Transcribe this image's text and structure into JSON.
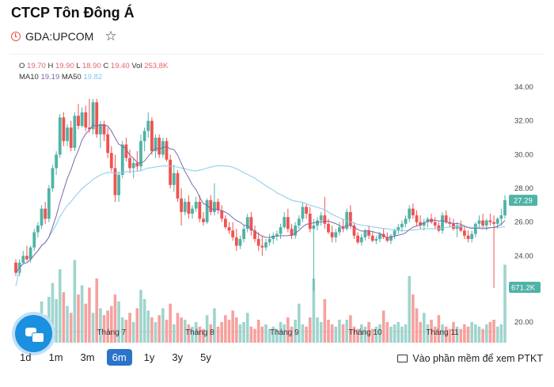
{
  "company_name": "CTCP Tôn Đông Á",
  "ticker": "GDA:UPCOM",
  "icons": {
    "clock": "clock-icon",
    "star": "star-icon",
    "chat": "chat-icon",
    "screen": "monitor-icon"
  },
  "legend": {
    "o_label": "O",
    "o_value": "19.70",
    "h_label": "H",
    "h_value": "19.90",
    "l_label": "L",
    "l_value": "18.90",
    "c_label": "C",
    "c_value": "19.40",
    "vol_label": "Vol",
    "vol_value": "253,8K",
    "ma10_label": "MA10",
    "ma10_value": "19.19",
    "ma50_label": "MA50",
    "ma50_value": "19.82"
  },
  "ranges": [
    {
      "label": "1d",
      "active": false
    },
    {
      "label": "1m",
      "active": false
    },
    {
      "label": "3m",
      "active": false
    },
    {
      "label": "6m",
      "active": true
    },
    {
      "label": "1y",
      "active": false
    },
    {
      "label": "3y",
      "active": false
    },
    {
      "label": "5y",
      "active": false
    }
  ],
  "ptkt_label": "Vào phần mềm để xem PTKT",
  "colors": {
    "up": "#4fb3a6",
    "down": "#ef5350",
    "ma10": "#7b68a8",
    "ma50": "#8fd0ee",
    "active": "#2a74c9"
  },
  "chart_data": {
    "type": "candlestick",
    "price_axis": [
      34.0,
      32.0,
      30.0,
      28.0,
      26.0,
      24.0
    ],
    "volume_axis": [
      20.0
    ],
    "ylim": [
      18.9,
      34.6
    ],
    "months": [
      "Tháng 6",
      "Tháng 7",
      "Tháng 8",
      "Tháng 9",
      "Tháng 10",
      "Tháng 11"
    ],
    "month_index": [
      3,
      26,
      50,
      73,
      95,
      116
    ],
    "last_price_label": "27.29",
    "last_price": 27.29,
    "last_volume_label": "671.2K",
    "ohlc": [
      [
        23.6,
        23.8,
        22.8,
        23.0
      ],
      [
        23.0,
        23.8,
        22.8,
        23.6
      ],
      [
        23.6,
        24.3,
        23.5,
        24.0
      ],
      [
        24.0,
        24.6,
        23.7,
        23.8
      ],
      [
        23.8,
        24.6,
        23.6,
        24.5
      ],
      [
        24.5,
        25.6,
        24.3,
        25.4
      ],
      [
        25.4,
        26.0,
        25.1,
        25.8
      ],
      [
        25.8,
        27.0,
        25.6,
        26.8
      ],
      [
        26.8,
        27.2,
        25.9,
        26.2
      ],
      [
        26.2,
        28.2,
        26.0,
        28.0
      ],
      [
        28.0,
        29.4,
        27.8,
        29.2
      ],
      [
        29.2,
        30.2,
        28.8,
        30.0
      ],
      [
        30.0,
        32.4,
        29.8,
        32.2
      ],
      [
        32.2,
        32.5,
        30.5,
        30.8
      ],
      [
        30.8,
        31.8,
        30.5,
        31.6
      ],
      [
        31.6,
        32.0,
        30.2,
        30.4
      ],
      [
        30.4,
        32.5,
        30.2,
        32.3
      ],
      [
        32.3,
        33.0,
        31.5,
        31.7
      ],
      [
        31.7,
        32.8,
        31.6,
        32.5
      ],
      [
        32.5,
        32.9,
        31.4,
        31.6
      ],
      [
        31.6,
        33.3,
        31.3,
        31.5
      ],
      [
        31.5,
        33.3,
        31.2,
        33.1
      ],
      [
        33.1,
        33.3,
        31.0,
        31.2
      ],
      [
        31.2,
        32.0,
        30.4,
        31.8
      ],
      [
        31.8,
        32.0,
        30.8,
        31.2
      ],
      [
        31.2,
        31.6,
        29.8,
        30.1
      ],
      [
        30.1,
        30.5,
        29.0,
        29.2
      ],
      [
        29.2,
        30.0,
        27.2,
        27.6
      ],
      [
        27.6,
        29.0,
        27.2,
        28.8
      ],
      [
        28.8,
        30.8,
        28.6,
        30.6
      ],
      [
        30.6,
        31.0,
        29.6,
        29.8
      ],
      [
        29.8,
        30.3,
        28.9,
        29.2
      ],
      [
        29.2,
        29.8,
        28.6,
        29.5
      ],
      [
        29.5,
        30.2,
        29.0,
        29.3
      ],
      [
        29.3,
        31.2,
        29.0,
        30.8
      ],
      [
        30.8,
        31.6,
        30.2,
        31.4
      ],
      [
        31.4,
        32.5,
        31.0,
        32.0
      ],
      [
        32.0,
        32.2,
        30.0,
        30.2
      ],
      [
        30.2,
        31.2,
        29.8,
        31.0
      ],
      [
        31.0,
        31.2,
        29.8,
        30.0
      ],
      [
        30.0,
        31.0,
        29.8,
        30.8
      ],
      [
        30.8,
        31.0,
        29.6,
        29.7
      ],
      [
        29.7,
        30.0,
        28.0,
        28.2
      ],
      [
        28.2,
        29.4,
        27.8,
        28.9
      ],
      [
        28.9,
        29.1,
        27.2,
        27.4
      ],
      [
        27.4,
        28.0,
        25.8,
        26.6
      ],
      [
        26.6,
        27.4,
        26.4,
        27.2
      ],
      [
        27.2,
        27.6,
        26.2,
        26.5
      ],
      [
        26.5,
        27.0,
        26.2,
        26.8
      ],
      [
        26.8,
        27.5,
        26.6,
        27.2
      ],
      [
        27.2,
        27.6,
        26.0,
        26.2
      ],
      [
        26.2,
        26.6,
        25.8,
        26.0
      ],
      [
        26.0,
        27.4,
        25.9,
        27.3
      ],
      [
        27.3,
        27.6,
        26.4,
        26.6
      ],
      [
        26.6,
        28.3,
        26.4,
        27.2
      ],
      [
        27.2,
        27.4,
        26.5,
        26.7
      ],
      [
        26.7,
        27.0,
        26.0,
        26.2
      ],
      [
        26.2,
        26.4,
        25.6,
        25.7
      ],
      [
        25.7,
        26.0,
        25.3,
        25.5
      ],
      [
        25.5,
        26.0,
        24.9,
        25.1
      ],
      [
        25.1,
        25.6,
        24.3,
        24.6
      ],
      [
        24.6,
        25.2,
        24.4,
        25.0
      ],
      [
        25.0,
        25.8,
        24.8,
        25.6
      ],
      [
        25.6,
        26.5,
        25.4,
        26.3
      ],
      [
        26.3,
        26.6,
        25.2,
        25.5
      ],
      [
        25.5,
        25.8,
        24.8,
        25.0
      ],
      [
        25.0,
        25.4,
        24.3,
        24.6
      ],
      [
        24.6,
        25.2,
        24.0,
        24.5
      ],
      [
        24.5,
        25.0,
        24.3,
        24.8
      ],
      [
        24.8,
        25.3,
        24.6,
        25.0
      ],
      [
        25.0,
        25.4,
        24.7,
        25.2
      ],
      [
        25.2,
        25.5,
        24.9,
        25.3
      ],
      [
        25.3,
        25.9,
        25.0,
        25.7
      ],
      [
        25.7,
        26.6,
        25.6,
        26.3
      ],
      [
        26.3,
        26.8,
        25.4,
        25.6
      ],
      [
        25.6,
        25.9,
        25.0,
        25.2
      ],
      [
        25.2,
        26.0,
        25.0,
        25.8
      ],
      [
        25.8,
        26.4,
        25.6,
        26.2
      ],
      [
        26.2,
        27.2,
        26.0,
        26.9
      ],
      [
        26.9,
        27.1,
        26.2,
        26.5
      ],
      [
        26.5,
        26.9,
        25.4,
        25.6
      ],
      [
        25.6,
        26.2,
        21.9,
        25.8
      ],
      [
        25.8,
        26.3,
        25.5,
        26.1
      ],
      [
        26.1,
        26.6,
        25.8,
        26.4
      ],
      [
        26.4,
        27.5,
        25.6,
        25.9
      ],
      [
        25.9,
        26.2,
        25.3,
        25.4
      ],
      [
        25.4,
        25.8,
        24.8,
        25.1
      ],
      [
        25.1,
        25.6,
        24.8,
        25.4
      ],
      [
        25.4,
        26.0,
        25.2,
        25.7
      ],
      [
        25.7,
        26.2,
        25.4,
        25.6
      ],
      [
        25.6,
        26.8,
        25.5,
        26.6
      ],
      [
        26.6,
        27.0,
        25.6,
        25.8
      ],
      [
        25.8,
        26.0,
        25.0,
        25.2
      ],
      [
        25.2,
        25.4,
        24.7,
        24.8
      ],
      [
        24.8,
        25.3,
        24.6,
        25.1
      ],
      [
        25.1,
        25.6,
        24.9,
        25.5
      ],
      [
        25.5,
        25.8,
        25.0,
        25.2
      ],
      [
        25.2,
        25.4,
        24.8,
        24.9
      ],
      [
        24.9,
        25.2,
        24.7,
        25.0
      ],
      [
        25.0,
        25.4,
        24.8,
        25.3
      ],
      [
        25.3,
        25.6,
        25.0,
        25.1
      ],
      [
        25.1,
        25.4,
        24.8,
        24.9
      ],
      [
        24.9,
        25.3,
        24.7,
        25.2
      ],
      [
        25.2,
        25.6,
        25.0,
        25.5
      ],
      [
        25.5,
        25.9,
        25.3,
        25.7
      ],
      [
        25.7,
        26.1,
        25.4,
        25.9
      ],
      [
        25.9,
        26.4,
        25.7,
        26.2
      ],
      [
        26.2,
        27.0,
        26.0,
        26.8
      ],
      [
        26.8,
        27.1,
        26.2,
        26.4
      ],
      [
        26.4,
        26.7,
        25.8,
        26.0
      ],
      [
        26.0,
        26.4,
        25.6,
        25.8
      ],
      [
        25.8,
        26.2,
        25.5,
        26.0
      ],
      [
        26.0,
        26.3,
        25.7,
        26.2
      ],
      [
        26.2,
        26.5,
        25.9,
        26.0
      ],
      [
        26.0,
        26.3,
        25.6,
        25.8
      ],
      [
        25.8,
        26.0,
        25.4,
        25.5
      ],
      [
        25.5,
        26.6,
        25.3,
        26.4
      ],
      [
        26.4,
        26.7,
        25.9,
        26.0
      ],
      [
        26.0,
        26.3,
        25.7,
        25.9
      ],
      [
        25.9,
        26.2,
        25.5,
        25.6
      ],
      [
        25.6,
        26.0,
        25.1,
        25.8
      ],
      [
        25.8,
        26.1,
        25.4,
        25.5
      ],
      [
        25.5,
        25.8,
        25.0,
        25.2
      ],
      [
        25.2,
        25.5,
        24.8,
        25.0
      ],
      [
        25.0,
        25.5,
        24.8,
        25.3
      ],
      [
        25.3,
        26.0,
        25.1,
        25.9
      ],
      [
        25.9,
        26.4,
        25.6,
        26.1
      ],
      [
        26.1,
        26.5,
        25.6,
        25.8
      ],
      [
        25.8,
        26.2,
        25.5,
        26.1
      ],
      [
        26.1,
        26.5,
        25.8,
        26.0
      ],
      [
        26.0,
        26.4,
        22.1,
        25.9
      ],
      [
        25.9,
        26.3,
        25.6,
        26.2
      ],
      [
        26.2,
        26.8,
        25.8,
        26.4
      ],
      [
        26.4,
        27.6,
        26.2,
        27.3
      ]
    ],
    "volume": [
      1.2,
      1.6,
      1.8,
      1.5,
      2.1,
      2.6,
      2.2,
      3.6,
      2.4,
      4.0,
      5.2,
      3.8,
      6.4,
      4.4,
      3.2,
      2.6,
      7.2,
      4.2,
      5.0,
      3.4,
      4.8,
      2.6,
      5.6,
      3.0,
      2.4,
      2.8,
      3.2,
      4.2,
      3.6,
      2.2,
      2.0,
      2.6,
      1.8,
      3.0,
      4.6,
      3.8,
      2.8,
      2.2,
      1.8,
      2.4,
      3.0,
      2.0,
      3.4,
      1.6,
      2.6,
      2.2,
      2.0,
      1.6,
      1.4,
      1.8,
      1.4,
      1.2,
      2.4,
      1.6,
      3.0,
      1.4,
      1.8,
      2.4,
      2.0,
      2.8,
      2.2,
      1.6,
      1.8,
      2.6,
      1.4,
      1.2,
      2.0,
      1.4,
      1.6,
      1.2,
      1.4,
      1.2,
      1.8,
      1.6,
      2.2,
      1.4,
      2.0,
      3.4,
      1.6,
      1.4,
      2.2,
      5.6,
      2.2,
      1.8,
      3.8,
      2.0,
      1.6,
      1.4,
      2.0,
      1.6,
      2.0,
      2.4,
      1.4,
      1.2,
      1.6,
      1.4,
      1.8,
      1.2,
      1.4,
      1.6,
      2.8,
      1.8,
      1.4,
      1.6,
      1.8,
      1.4,
      1.6,
      5.8,
      4.2,
      3.0,
      1.8,
      2.6,
      1.6,
      2.0,
      1.4,
      2.4,
      1.6,
      1.4,
      1.2,
      1.8,
      1.4,
      1.2,
      1.6,
      1.4,
      1.8,
      1.6,
      1.4,
      1.2,
      1.6,
      1.8,
      2.0,
      1.4,
      1.6,
      6.8
    ]
  }
}
